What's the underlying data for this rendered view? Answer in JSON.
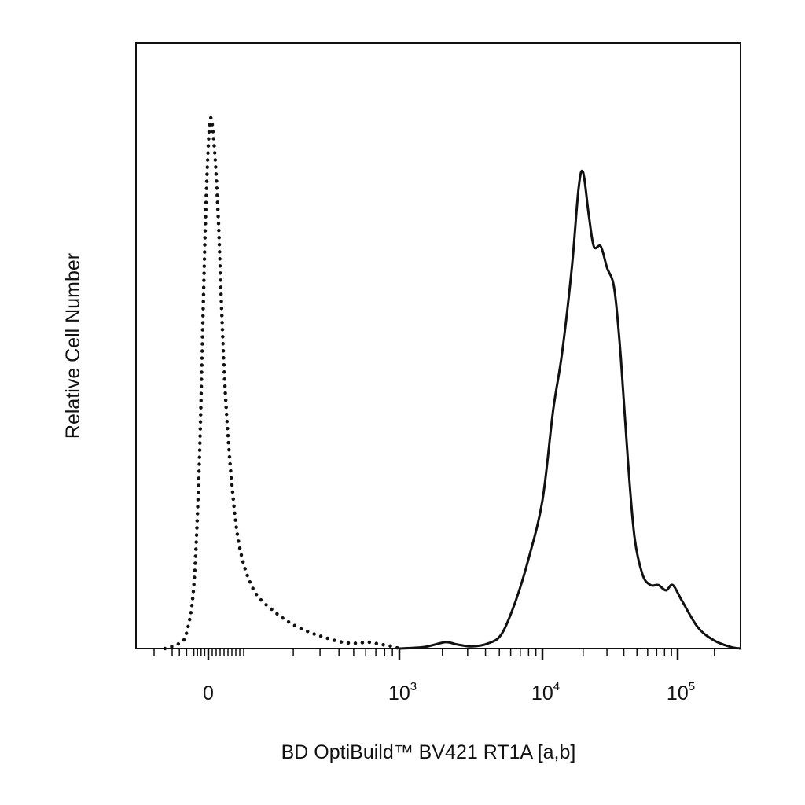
{
  "chart_data": {
    "type": "area",
    "title": "",
    "xlabel": "BD OptiBuild™ BV421 RT1A [a,b]",
    "ylabel": "Relative Cell Number",
    "x_scale": "biexponential",
    "xlim": [
      -200,
      200000
    ],
    "ylim": [
      0,
      1
    ],
    "grid": false,
    "legend": "none",
    "x_tick_labels": [
      {
        "value": 0,
        "base": "0",
        "exp": ""
      },
      {
        "value": 1000,
        "base": "10",
        "exp": "3"
      },
      {
        "value": 10000,
        "base": "10",
        "exp": "4"
      },
      {
        "value": 100000,
        "base": "10",
        "exp": "5"
      }
    ],
    "series": [
      {
        "style": "dotted",
        "color": "#111111",
        "points": [
          [
            -120,
            0.0
          ],
          [
            -80,
            0.01
          ],
          [
            -60,
            0.03
          ],
          [
            -40,
            0.12
          ],
          [
            -25,
            0.35
          ],
          [
            -15,
            0.62
          ],
          [
            -5,
            0.87
          ],
          [
            5,
            1.0
          ],
          [
            15,
            0.95
          ],
          [
            25,
            0.82
          ],
          [
            35,
            0.62
          ],
          [
            45,
            0.46
          ],
          [
            60,
            0.31
          ],
          [
            80,
            0.19
          ],
          [
            110,
            0.11
          ],
          [
            150,
            0.07
          ],
          [
            200,
            0.045
          ],
          [
            260,
            0.03
          ],
          [
            330,
            0.02
          ],
          [
            420,
            0.012
          ],
          [
            520,
            0.01
          ],
          [
            620,
            0.012
          ],
          [
            750,
            0.008
          ],
          [
            900,
            0.004
          ],
          [
            1000,
            0.0
          ]
        ]
      },
      {
        "style": "solid",
        "color": "#111111",
        "points": [
          [
            1000,
            0.0
          ],
          [
            1500,
            0.003
          ],
          [
            2100,
            0.012
          ],
          [
            2500,
            0.008
          ],
          [
            3200,
            0.004
          ],
          [
            4200,
            0.01
          ],
          [
            5200,
            0.028
          ],
          [
            6500,
            0.09
          ],
          [
            8000,
            0.17
          ],
          [
            10000,
            0.28
          ],
          [
            12000,
            0.45
          ],
          [
            14000,
            0.56
          ],
          [
            16500,
            0.72
          ],
          [
            18500,
            0.87
          ],
          [
            20000,
            0.9
          ],
          [
            22000,
            0.82
          ],
          [
            24000,
            0.76
          ],
          [
            27000,
            0.76
          ],
          [
            30000,
            0.72
          ],
          [
            34000,
            0.68
          ],
          [
            38000,
            0.55
          ],
          [
            43000,
            0.35
          ],
          [
            48000,
            0.21
          ],
          [
            55000,
            0.14
          ],
          [
            63000,
            0.12
          ],
          [
            72000,
            0.12
          ],
          [
            82000,
            0.11
          ],
          [
            92000,
            0.12
          ],
          [
            105000,
            0.09
          ],
          [
            125000,
            0.04
          ],
          [
            150000,
            0.015
          ],
          [
            180000,
            0.003
          ],
          [
            200000,
            0.0
          ]
        ]
      }
    ]
  }
}
